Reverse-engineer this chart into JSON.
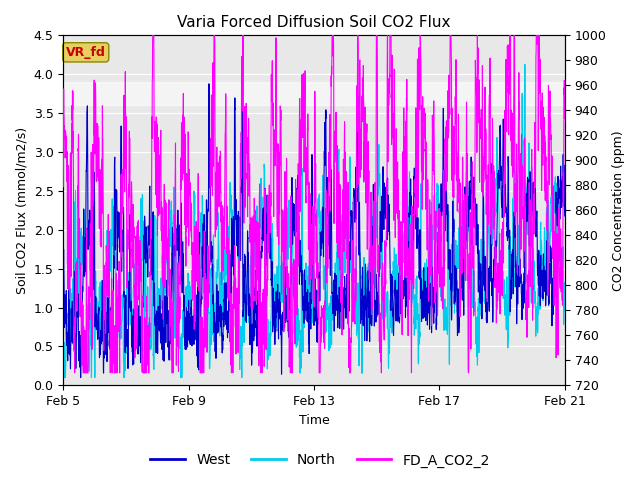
{
  "title": "Varia Forced Diffusion Soil CO2 Flux",
  "xlabel": "Time",
  "ylabel_left": "Soil CO2 Flux (mmol/m2/s)",
  "ylabel_right": "CO2 Concentration (ppm)",
  "ylim_left": [
    0.0,
    4.5
  ],
  "ylim_right": [
    720,
    1000
  ],
  "yticks_left": [
    0.0,
    0.5,
    1.0,
    1.5,
    2.0,
    2.5,
    3.0,
    3.5,
    4.0,
    4.5
  ],
  "yticks_right": [
    720,
    740,
    760,
    780,
    800,
    820,
    840,
    860,
    880,
    900,
    920,
    940,
    960,
    980,
    1000
  ],
  "xtick_labels": [
    "Feb 5",
    "Feb 9",
    "Feb 13",
    "Feb 17",
    "Feb 21"
  ],
  "shaded_region": [
    3.6,
    3.9
  ],
  "annotation_text": "VR_fd",
  "annotation_color": "#cc0000",
  "annotation_box_facecolor": "#e8d060",
  "annotation_box_edgecolor": "#888800",
  "line_colors": {
    "West": "#0000cc",
    "North": "#00ccee",
    "FD_A_CO2_2": "#ff00ff"
  },
  "line_widths": {
    "West": 0.8,
    "North": 0.8,
    "FD_A_CO2_2": 0.8
  },
  "legend_labels": [
    "West",
    "North",
    "FD_A_CO2_2"
  ],
  "seed": 42,
  "n_points": 3000,
  "date_start": 5,
  "date_end": 22,
  "ax_facecolor": "#e8e8e8",
  "fig_facecolor": "#ffffff",
  "grid_color": "#ffffff",
  "title_fontsize": 11,
  "label_fontsize": 9,
  "tick_fontsize": 9,
  "legend_fontsize": 10
}
